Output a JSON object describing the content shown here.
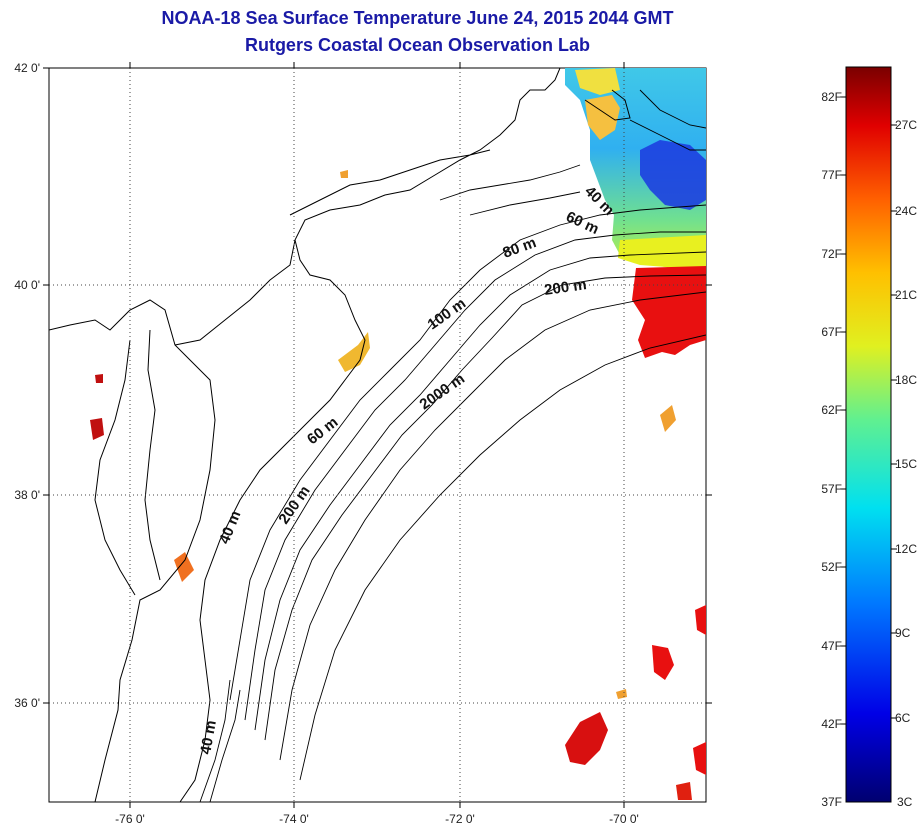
{
  "title": {
    "line1": "NOAA-18 Sea Surface Temperature June 24, 2015 2044 GMT",
    "line2": "Rutgers Coastal Ocean Observation Lab"
  },
  "axes": {
    "x_ticks": [
      "-76 0'",
      "-74 0'",
      "-72 0'",
      "-70 0'"
    ],
    "y_ticks": [
      "42 0'",
      "40 0'",
      "38 0'",
      "36 0'"
    ]
  },
  "contour_labels": [
    "40 m",
    "60 m",
    "80 m",
    "200 m",
    "100 m",
    "2000 m",
    "60 m",
    "40 m",
    "200 m",
    "40 m"
  ],
  "colorbar": {
    "fahrenheit": [
      "82F",
      "77F",
      "72F",
      "67F",
      "62F",
      "57F",
      "52F",
      "47F",
      "42F",
      "37F"
    ],
    "celsius": [
      "27C",
      "24C",
      "21C",
      "18C",
      "15C",
      "12C",
      "9C",
      "6C",
      "3C"
    ]
  },
  "colors": {
    "title": "#1a1aa6",
    "land_line": "#000000",
    "warm": "#e81010",
    "cold": "#1d3fe0"
  }
}
